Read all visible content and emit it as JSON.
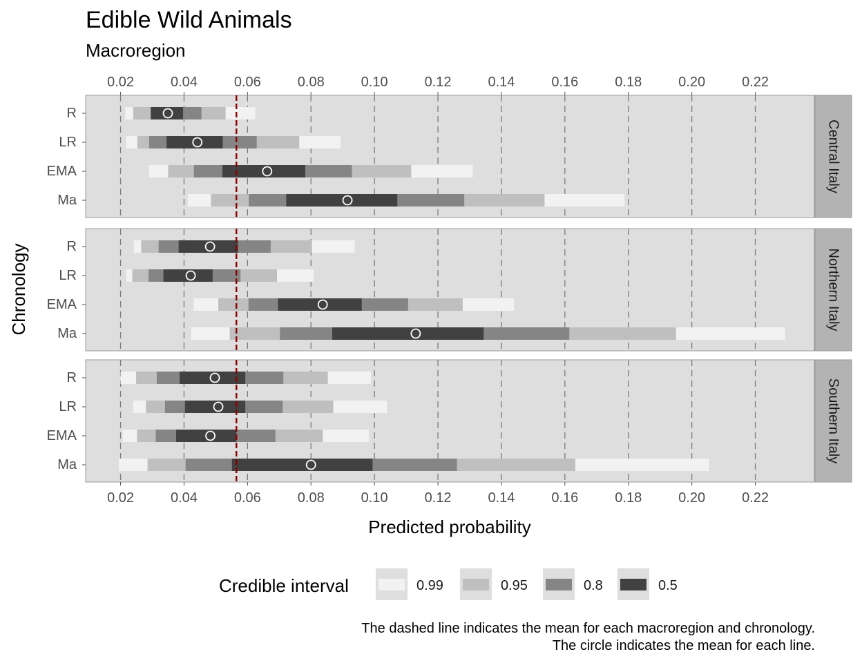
{
  "chart_data": {
    "type": "interval",
    "title": "Edible Wild Animals",
    "subtitle": "Macroregion",
    "xlabel": "Predicted probability",
    "ylabel": "Chronology",
    "xlim": [
      0.009,
      0.2386
    ],
    "x_ticks": [
      "0.02",
      "0.04",
      "0.06",
      "0.08",
      "0.10",
      "0.12",
      "0.14",
      "0.16",
      "0.18",
      "0.20",
      "0.22"
    ],
    "x_tick_values": [
      0.02,
      0.04,
      0.06,
      0.08,
      0.1,
      0.12,
      0.14,
      0.16,
      0.18,
      0.2,
      0.22
    ],
    "x_axis_top": true,
    "x_axis_bottom": true,
    "grid": "dashed vertical",
    "categories": [
      "R",
      "LR",
      "EMA",
      "Ma"
    ],
    "legend": {
      "title": "Credible interval",
      "position": "bottom",
      "levels": [
        {
          "label": "0.99",
          "color": "#f2f2f2"
        },
        {
          "label": "0.95",
          "color": "#bfbfbf"
        },
        {
          "label": "0.8",
          "color": "#858585"
        },
        {
          "label": "0.5",
          "color": "#414141"
        }
      ]
    },
    "mean_line_color": "#8b0000",
    "panel_bg": "#dedede",
    "strip_bg": "#b3b3b3",
    "caption": [
      "The dashed line indicates the mean for each macroregion and chronology.",
      "The circle indicates the mean for each line."
    ],
    "panels": [
      {
        "name": "Central Italy",
        "mean_line": 0.0565,
        "rows": [
          {
            "label": "R",
            "mean": 0.0349,
            "i99": [
              0.0215,
              0.0624
            ],
            "i95": [
              0.024,
              0.0531
            ],
            "i80": [
              0.0297,
              0.0455
            ],
            "i50": [
              0.0295,
              0.0397
            ]
          },
          {
            "label": "LR",
            "mean": 0.0442,
            "i99": [
              0.0218,
              0.0893
            ],
            "i95": [
              0.0253,
              0.0763
            ],
            "i80": [
              0.029,
              0.0629
            ],
            "i50": [
              0.0345,
              0.0522
            ]
          },
          {
            "label": "EMA",
            "mean": 0.0662,
            "i99": [
              0.029,
              0.131
            ],
            "i95": [
              0.035,
              0.1116
            ],
            "i80": [
              0.0431,
              0.0929
            ],
            "i50": [
              0.0521,
              0.0782
            ]
          },
          {
            "label": "Ma",
            "mean": 0.0915,
            "i99": [
              0.0412,
              0.1788
            ],
            "i95": [
              0.0485,
              0.1536
            ],
            "i80": [
              0.0604,
              0.1283
            ],
            "i50": [
              0.0722,
              0.1072
            ]
          }
        ]
      },
      {
        "name": "Northern Italy",
        "mean_line": 0.0565,
        "rows": [
          {
            "label": "R",
            "mean": 0.0482,
            "i99": [
              0.0242,
              0.0938
            ],
            "i95": [
              0.0265,
              0.0803
            ],
            "i80": [
              0.032,
              0.0673
            ],
            "i50": [
              0.0383,
              0.057
            ]
          },
          {
            "label": "LR",
            "mean": 0.0421,
            "i99": [
              0.0218,
              0.0808
            ],
            "i95": [
              0.0237,
              0.0693
            ],
            "i80": [
              0.0288,
              0.0578
            ],
            "i50": [
              0.0335,
              0.049
            ]
          },
          {
            "label": "EMA",
            "mean": 0.0837,
            "i99": [
              0.043,
              0.144
            ],
            "i95": [
              0.0508,
              0.1278
            ],
            "i80": [
              0.0603,
              0.1106
            ],
            "i50": [
              0.0696,
              0.096
            ]
          },
          {
            "label": "Ma",
            "mean": 0.113,
            "i99": [
              0.0422,
              0.2294
            ],
            "i95": [
              0.0544,
              0.195
            ],
            "i80": [
              0.0702,
              0.1614
            ],
            "i50": [
              0.0867,
              0.1344
            ]
          }
        ]
      },
      {
        "name": "Southern Italy",
        "mean_line": 0.0565,
        "rows": [
          {
            "label": "R",
            "mean": 0.0497,
            "i99": [
              0.02,
              0.0989
            ],
            "i95": [
              0.0249,
              0.0853
            ],
            "i80": [
              0.0314,
              0.0713
            ],
            "i50": [
              0.0386,
              0.0593
            ]
          },
          {
            "label": "LR",
            "mean": 0.0508,
            "i99": [
              0.024,
              0.1039
            ],
            "i95": [
              0.028,
              0.087
            ],
            "i80": [
              0.034,
              0.0711
            ],
            "i50": [
              0.0403,
              0.0593
            ]
          },
          {
            "label": "EMA",
            "mean": 0.0483,
            "i99": [
              0.0207,
              0.0982
            ],
            "i95": [
              0.0252,
              0.0837
            ],
            "i80": [
              0.0311,
              0.0688
            ],
            "i50": [
              0.0375,
              0.0565
            ]
          },
          {
            "label": "Ma",
            "mean": 0.08,
            "i99": [
              0.0195,
              0.2054
            ],
            "i95": [
              0.0285,
              0.1633
            ],
            "i80": [
              0.0405,
              0.126
            ],
            "i50": [
              0.0551,
              0.0994
            ]
          }
        ]
      }
    ]
  }
}
